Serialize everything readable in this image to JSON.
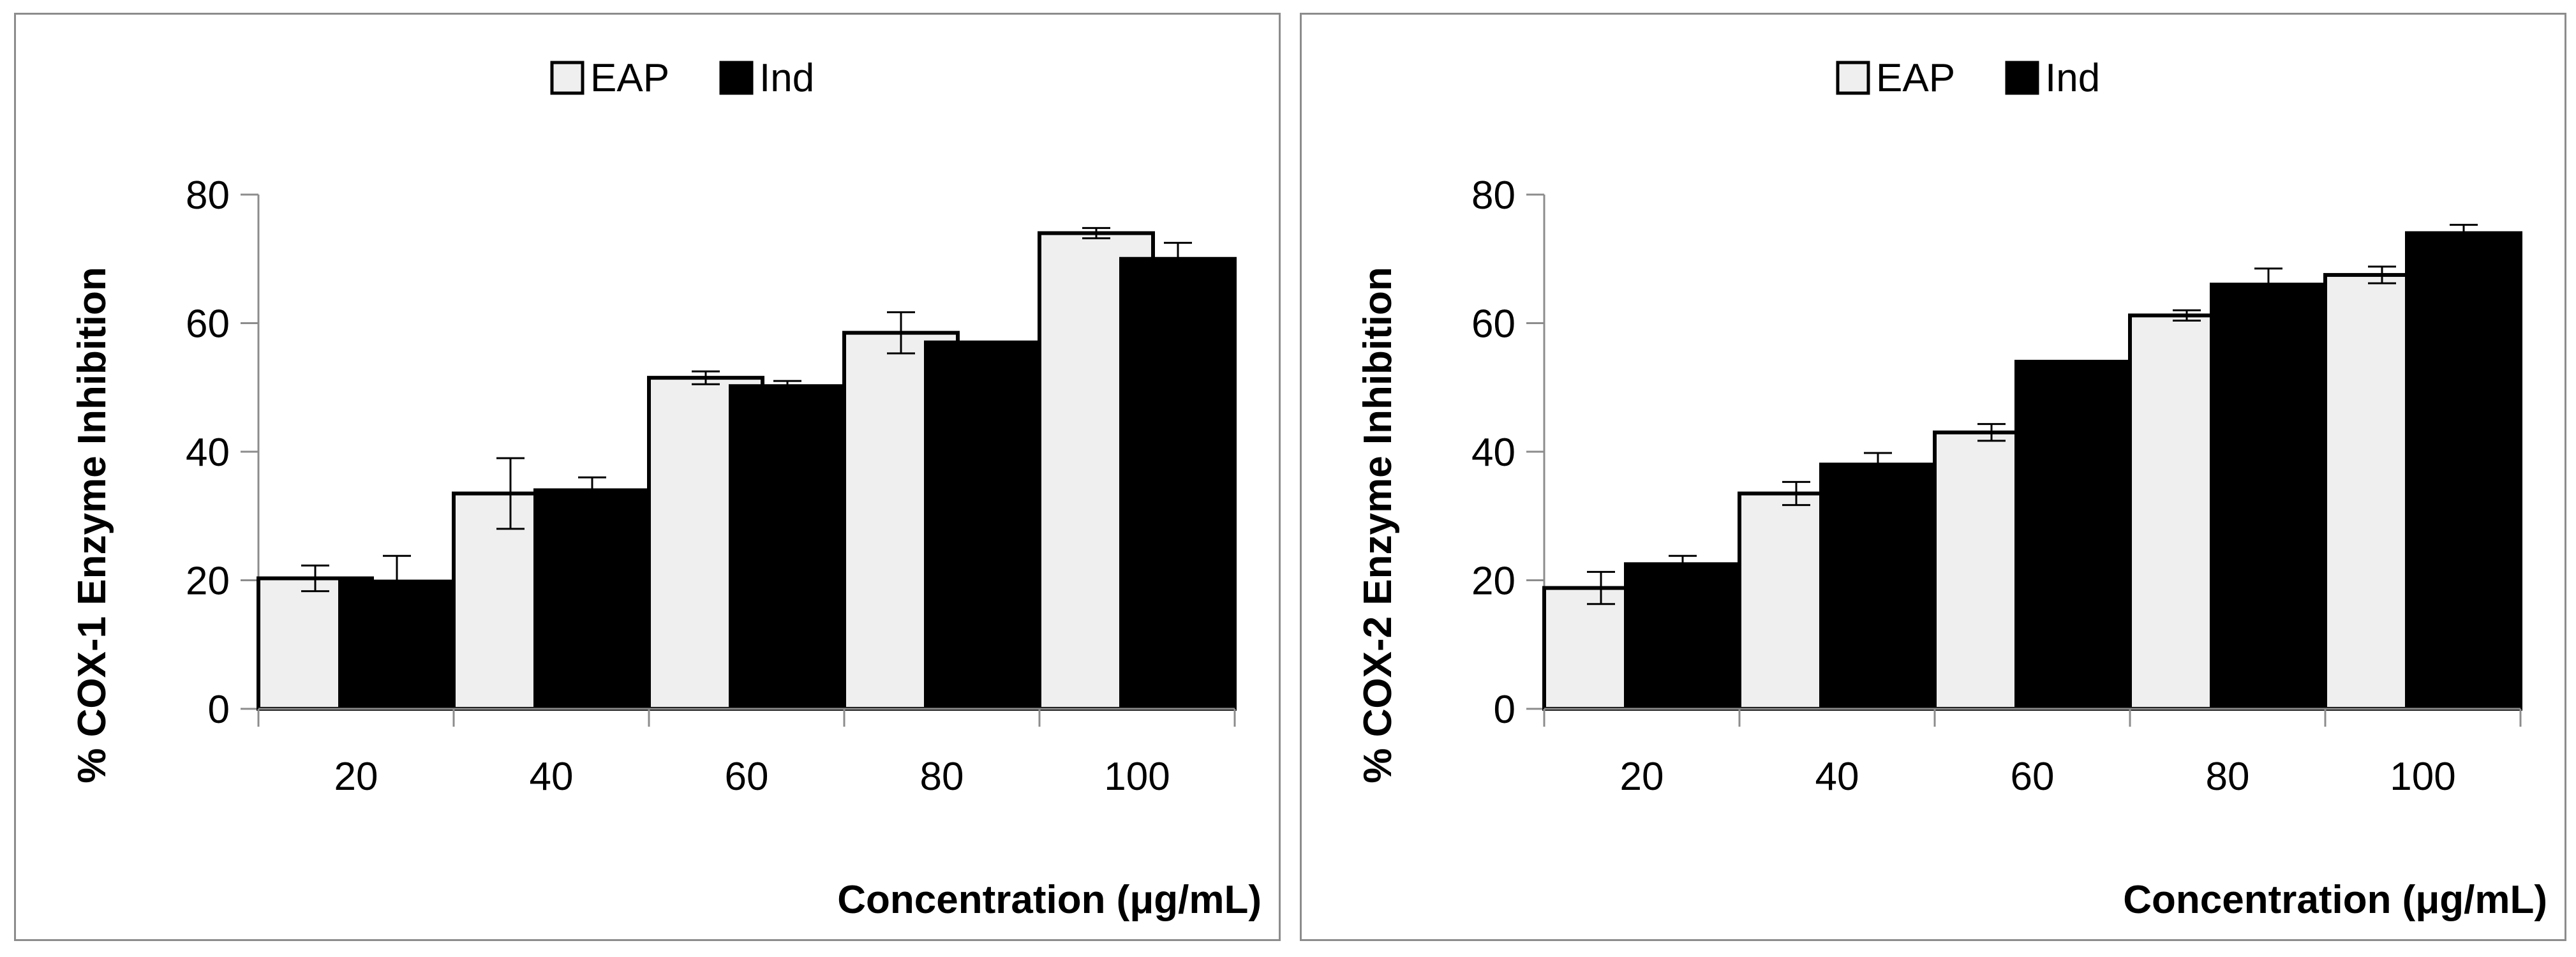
{
  "chart_data": [
    {
      "type": "bar",
      "title": "",
      "xlabel": "Concentration (μg/mL)",
      "ylabel": "% COX-1 Enzyme Inhibition",
      "ylim": [
        0,
        80
      ],
      "yticks": [
        "0",
        "20",
        "40",
        "60",
        "80"
      ],
      "categories": [
        "20",
        "40",
        "60",
        "80",
        "100"
      ],
      "legend_position": "top-center",
      "grid": false,
      "series": [
        {
          "name": "EAP",
          "color": "#efefef",
          "values": [
            20.3,
            33.5,
            51.5,
            58.5,
            74.0
          ],
          "errors": [
            2.0,
            5.5,
            1.0,
            3.2,
            0.8
          ]
        },
        {
          "name": "Ind",
          "color": "#000000",
          "values": [
            19.8,
            34.0,
            50.2,
            57.0,
            70.0
          ],
          "errors": [
            4.0,
            2.0,
            0.8,
            0.0,
            2.5
          ]
        }
      ]
    },
    {
      "type": "bar",
      "title": "",
      "xlabel": "Concentration (μg/mL)",
      "ylabel": "% COX-2 Enzyme Inhibition",
      "ylim": [
        0,
        80
      ],
      "yticks": [
        "0",
        "20",
        "40",
        "60",
        "80"
      ],
      "categories": [
        "20",
        "40",
        "60",
        "80",
        "100"
      ],
      "legend_position": "top-center",
      "grid": false,
      "series": [
        {
          "name": "EAP",
          "color": "#efefef",
          "values": [
            18.8,
            33.5,
            43.0,
            61.2,
            67.5
          ],
          "errors": [
            2.5,
            1.8,
            1.3,
            0.8,
            1.3
          ]
        },
        {
          "name": "Ind",
          "color": "#000000",
          "values": [
            22.5,
            38.0,
            54.0,
            66.0,
            74.0
          ],
          "errors": [
            1.3,
            1.8,
            0.0,
            2.5,
            1.3
          ]
        }
      ]
    }
  ]
}
